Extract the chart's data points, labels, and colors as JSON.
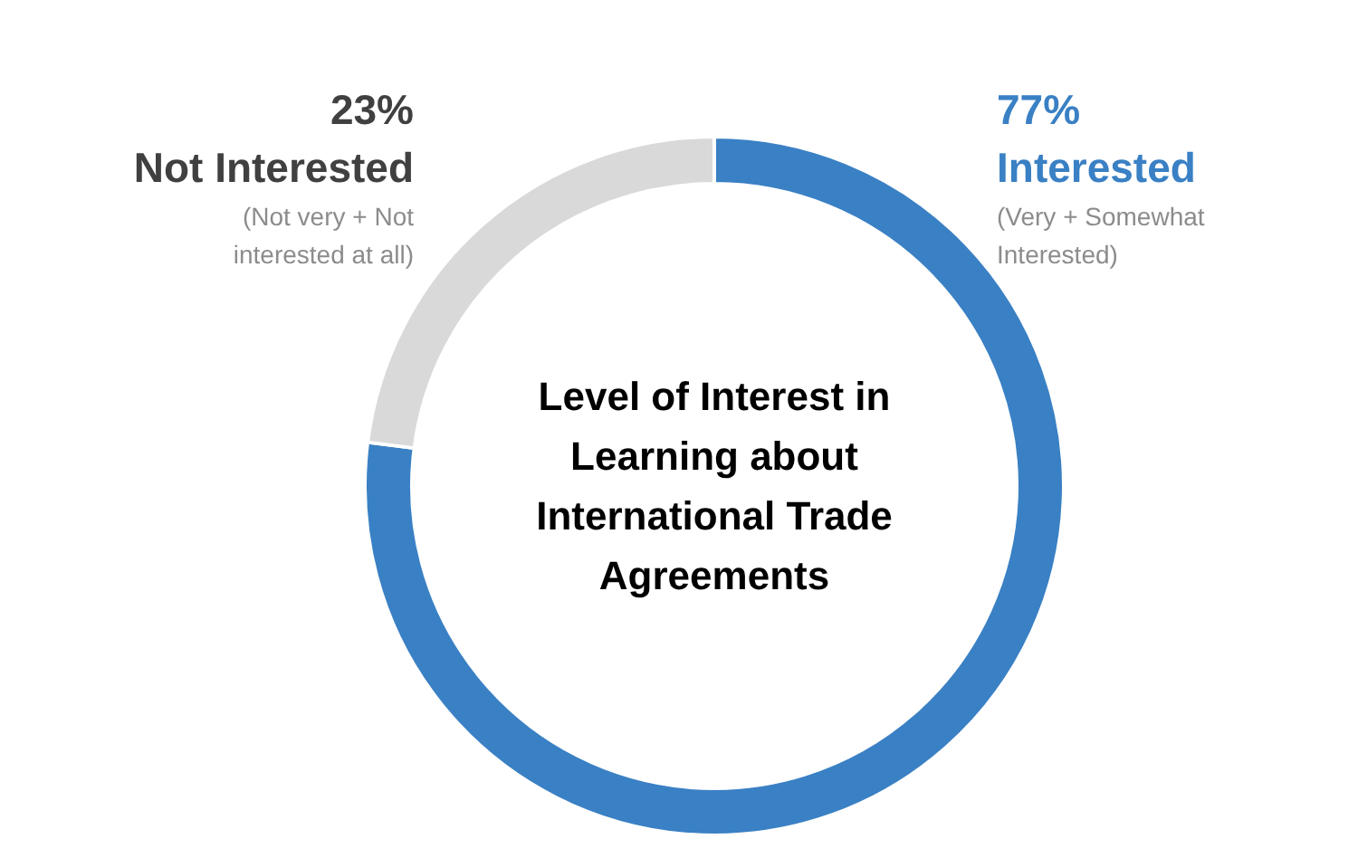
{
  "chart_data": {
    "type": "donut",
    "title": "Level of Interest in Learning about International Trade Agreements",
    "categories": [
      "Interested",
      "Not Interested"
    ],
    "values": [
      77,
      23
    ],
    "colors": [
      "#3a80c4",
      "#d9d9d9"
    ],
    "value_labels": [
      "77%",
      "23%"
    ],
    "annotations": [
      "(Very + Somewhat Interested)",
      "(Not very + Not interested at all)"
    ]
  }
}
